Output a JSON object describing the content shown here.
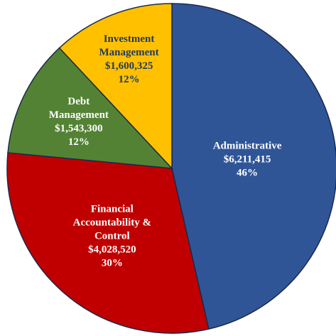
{
  "chart_data": {
    "type": "pie",
    "categories": [
      "Administrative",
      "Financial Accountability & Control",
      "Debt Management",
      "Investment Management"
    ],
    "values": [
      6211415,
      4028520,
      1543300,
      1600325
    ],
    "value_labels": [
      "$6,211,415",
      "$4,028,520",
      "$1,543,300",
      "$1,600,325"
    ],
    "percent_labels": [
      "46%",
      "30%",
      "12%",
      "12%"
    ],
    "colors": [
      "#2f5597",
      "#c00000",
      "#548235",
      "#ffc000"
    ],
    "label_colors": [
      "#ffffff",
      "#ffffff",
      "#ffffff",
      "#203864"
    ]
  }
}
